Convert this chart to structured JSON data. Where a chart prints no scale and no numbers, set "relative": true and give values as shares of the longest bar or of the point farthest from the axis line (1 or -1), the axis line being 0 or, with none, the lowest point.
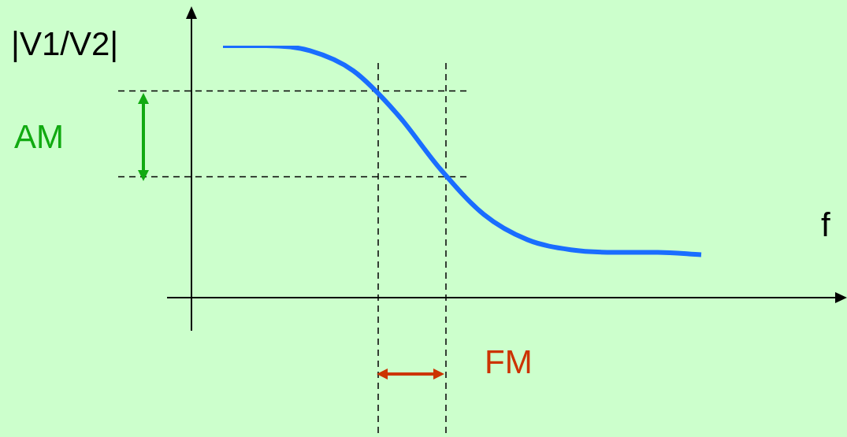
{
  "chart_data": {
    "type": "line",
    "relative": true,
    "ylabel": "|V1/V2|",
    "xlabel": "f",
    "categories": [
      null,
      null,
      null,
      null,
      null,
      null,
      null,
      null,
      null,
      null,
      null,
      null
    ],
    "series": [
      {
        "color": "#1a6dff",
        "values": [
          1,
          1.0,
          0.98,
          0.9,
          0.73,
          0.51,
          0.33,
          0.23,
          0.19,
          0.18,
          0.18,
          0.17
        ]
      }
    ],
    "ref_lines": [
      {
        "axis": "y",
        "value": 0.82,
        "line_style": "dashed",
        "color": "#000000"
      },
      {
        "axis": "y",
        "value": 0.48,
        "line_style": "dashed",
        "color": "#000000"
      }
    ],
    "annotations": [
      "AM",
      "FM"
    ],
    "legend": false,
    "marker": "none",
    "line_style": "solid"
  }
}
